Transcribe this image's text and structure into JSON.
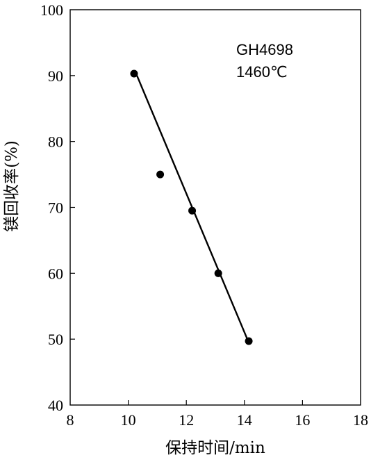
{
  "chart_data": {
    "type": "scatter",
    "title": "",
    "xlabel": "保持时间/min",
    "ylabel": "镁回收率(%)",
    "xlim": [
      8,
      18
    ],
    "ylim": [
      40,
      100
    ],
    "xticks": [
      8,
      10,
      12,
      14,
      16,
      18
    ],
    "yticks": [
      40,
      50,
      60,
      70,
      80,
      90,
      100
    ],
    "grid": false,
    "legend": "none",
    "annotations": [
      "GH4698",
      "1460℃"
    ],
    "series": [
      {
        "points": [
          {
            "x": 10.2,
            "y": 90.3
          },
          {
            "x": 11.1,
            "y": 75.0
          },
          {
            "x": 12.2,
            "y": 69.5
          },
          {
            "x": 13.1,
            "y": 60.0
          },
          {
            "x": 14.15,
            "y": 49.7
          }
        ]
      }
    ],
    "fit_line": {
      "x": [
        10.3,
        14.1
      ],
      "y": [
        90.0,
        50.0
      ]
    }
  }
}
